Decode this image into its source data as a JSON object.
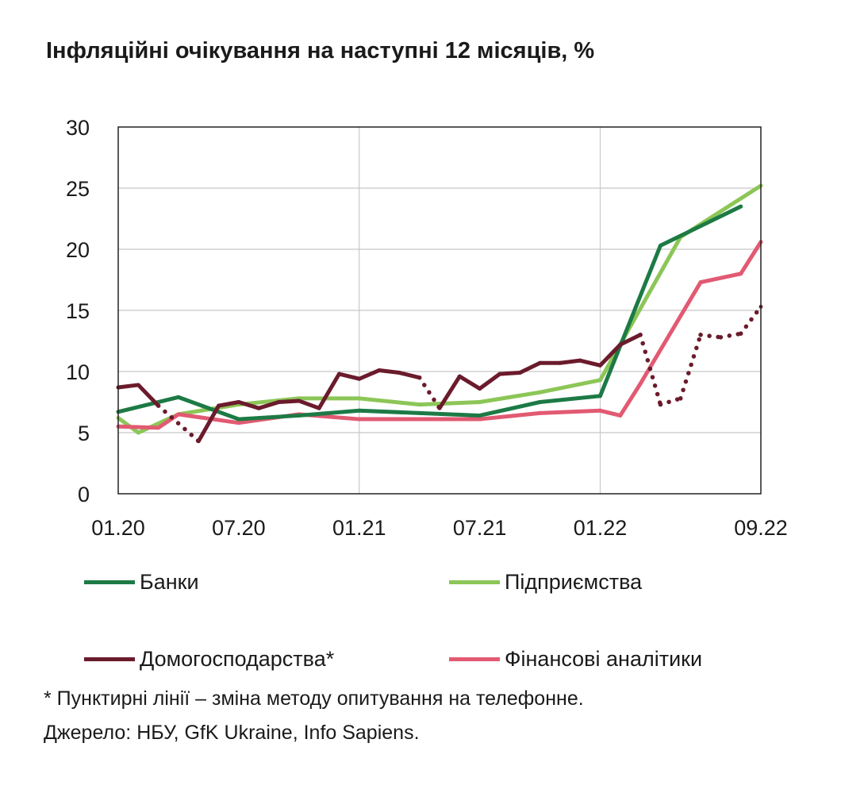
{
  "chart_data": {
    "type": "line",
    "title": "Інфляційні очікування на наступні 12 місяців, %",
    "ylim": [
      0,
      30
    ],
    "yticks": [
      "0",
      "5",
      "10",
      "15",
      "20",
      "25",
      "30"
    ],
    "xlim_months": [
      "2020-01",
      "2022-09"
    ],
    "xticks": [
      {
        "label": "01.20",
        "date": "2020-01"
      },
      {
        "label": "07.20",
        "date": "2020-07"
      },
      {
        "label": "01.21",
        "date": "2021-01"
      },
      {
        "label": "07.21",
        "date": "2021-07"
      },
      {
        "label": "01.22",
        "date": "2022-01"
      },
      {
        "label": "09.22",
        "date": "2022-09"
      }
    ],
    "grid": "vertical-at-year-start",
    "legend_placement": "bottom",
    "series": [
      {
        "name": "Банки",
        "color": "#1d7a45",
        "points": [
          [
            "2020-01",
            6.7
          ],
          [
            "2020-04",
            7.9
          ],
          [
            "2020-07",
            6.1
          ],
          [
            "2020-10",
            6.4
          ],
          [
            "2021-01",
            6.8
          ],
          [
            "2021-04",
            6.6
          ],
          [
            "2021-07",
            6.4
          ],
          [
            "2021-10",
            7.5
          ],
          [
            "2022-01",
            8.0
          ],
          [
            "2022-04",
            20.3
          ],
          [
            "2022-08",
            23.5
          ]
        ]
      },
      {
        "name": "Підприємства",
        "color": "#8cc657",
        "points": [
          [
            "2020-01",
            6.2
          ],
          [
            "2020-02",
            5.0
          ],
          [
            "2020-04",
            6.5
          ],
          [
            "2020-07",
            7.3
          ],
          [
            "2020-10",
            7.8
          ],
          [
            "2021-01",
            7.8
          ],
          [
            "2021-04",
            7.3
          ],
          [
            "2021-07",
            7.5
          ],
          [
            "2021-10",
            8.3
          ],
          [
            "2022-01",
            9.3
          ],
          [
            "2022-05",
            21.0
          ],
          [
            "2022-09",
            25.2
          ]
        ]
      },
      {
        "name": "Домогосподарства*",
        "color": "#6b1b2c",
        "points": [
          [
            "2020-01",
            8.7
          ],
          [
            "2020-02",
            8.9
          ],
          [
            "2020-03",
            7.2
          ],
          [
            "2020-05",
            4.3
          ],
          [
            "2020-06",
            7.2
          ],
          [
            "2020-07",
            7.5
          ],
          [
            "2020-08",
            7.0
          ],
          [
            "2020-09",
            7.5
          ],
          [
            "2020-10",
            7.6
          ],
          [
            "2020-11",
            7.0
          ],
          [
            "2020-12",
            9.8
          ],
          [
            "2021-01",
            9.4
          ],
          [
            "2021-02",
            10.1
          ],
          [
            "2021-03",
            9.9
          ],
          [
            "2021-04",
            9.5
          ],
          [
            "2021-05",
            7.0
          ],
          [
            "2021-06",
            9.6
          ],
          [
            "2021-07",
            8.6
          ],
          [
            "2021-08",
            9.8
          ],
          [
            "2021-09",
            9.9
          ],
          [
            "2021-10",
            10.7
          ],
          [
            "2021-11",
            10.7
          ],
          [
            "2021-12",
            10.9
          ],
          [
            "2022-01",
            10.5
          ],
          [
            "2022-02",
            12.2
          ],
          [
            "2022-03",
            13.0
          ],
          [
            "2022-04",
            7.3
          ],
          [
            "2022-05",
            7.8
          ],
          [
            "2022-06",
            13.0
          ],
          [
            "2022-07",
            12.8
          ],
          [
            "2022-08",
            13.1
          ],
          [
            "2022-09",
            15.3
          ]
        ],
        "dashed_segments": [
          [
            "2020-03",
            "2020-05"
          ],
          [
            "2021-04",
            "2021-05"
          ],
          [
            "2022-03",
            "2022-09"
          ]
        ]
      },
      {
        "name": "Фінансові аналітики",
        "color": "#e25a72",
        "points": [
          [
            "2020-01",
            5.5
          ],
          [
            "2020-03",
            5.4
          ],
          [
            "2020-04",
            6.5
          ],
          [
            "2020-07",
            5.8
          ],
          [
            "2020-10",
            6.5
          ],
          [
            "2021-01",
            6.1
          ],
          [
            "2021-07",
            6.1
          ],
          [
            "2021-10",
            6.6
          ],
          [
            "2022-01",
            6.8
          ],
          [
            "2022-02",
            6.4
          ],
          [
            "2022-03",
            9.0
          ],
          [
            "2022-06",
            17.3
          ],
          [
            "2022-08",
            18.0
          ],
          [
            "2022-09",
            20.6
          ]
        ]
      }
    ],
    "notes": [
      "* Пунктирні лінії – зміна методу опитування на телефонне.",
      "Джерело: НБУ, GfK Ukraine, Info Sapiens."
    ]
  }
}
